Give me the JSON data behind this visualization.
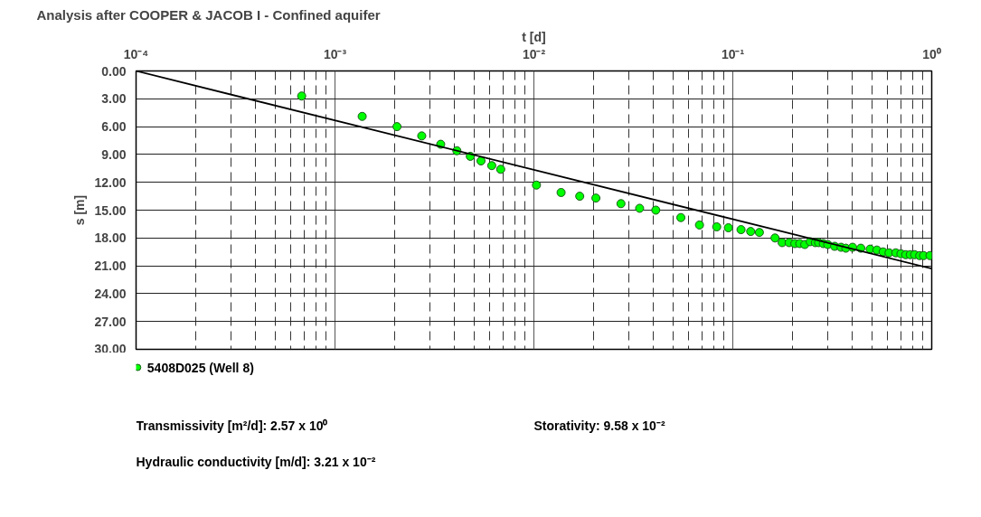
{
  "chart_data": {
    "type": "scatter",
    "title": "Analysis after COOPER & JACOB I - Confined aquifer",
    "xlabel": "t [d]",
    "ylabel": "s [m]",
    "log": "x",
    "grid": true,
    "legend": "bottom left",
    "xlim": [
      0.0001,
      1
    ],
    "xticks": [
      {
        "value": 0.0001,
        "label": "10⁻⁴"
      },
      {
        "value": 0.001,
        "label": "10⁻³"
      },
      {
        "value": 0.01,
        "label": "10⁻²"
      },
      {
        "value": 0.1,
        "label": "10⁻¹"
      },
      {
        "value": 1,
        "label": "10⁰"
      }
    ],
    "ylim": [
      30,
      0
    ],
    "yticks": [
      {
        "value": 0,
        "label": "0.00"
      },
      {
        "value": 3,
        "label": "3.00"
      },
      {
        "value": 6,
        "label": "6.00"
      },
      {
        "value": 9,
        "label": "9.00"
      },
      {
        "value": 12,
        "label": "12.00"
      },
      {
        "value": 15,
        "label": "15.00"
      },
      {
        "value": 18,
        "label": "18.00"
      },
      {
        "value": 21,
        "label": "21.00"
      },
      {
        "value": 24,
        "label": "24.00"
      },
      {
        "value": 27,
        "label": "27.00"
      },
      {
        "value": 30,
        "label": "30.00"
      }
    ],
    "series": [
      {
        "name": "5408D025 (Well 8)",
        "marker": "circle",
        "color": "#00ff00",
        "x": [
          0.00068,
          0.00137,
          0.00205,
          0.00273,
          0.0034,
          0.0041,
          0.00479,
          0.00542,
          0.00614,
          0.00681,
          0.0103,
          0.0137,
          0.017,
          0.0205,
          0.0274,
          0.034,
          0.041,
          0.0548,
          0.068,
          0.083,
          0.095,
          0.11,
          0.123,
          0.136,
          0.163,
          0.177,
          0.192,
          0.205,
          0.217,
          0.23,
          0.245,
          0.26,
          0.27,
          0.285,
          0.3,
          0.325,
          0.35,
          0.37,
          0.4,
          0.44,
          0.49,
          0.53,
          0.57,
          0.61,
          0.66,
          0.7,
          0.74,
          0.78,
          0.82,
          0.87,
          0.91,
          0.98
        ],
        "values": [
          2.7,
          4.9,
          6.0,
          7.0,
          7.9,
          8.6,
          9.2,
          9.7,
          10.2,
          10.6,
          12.3,
          13.1,
          13.5,
          13.7,
          14.3,
          14.8,
          15.0,
          15.8,
          16.6,
          16.8,
          16.9,
          17.1,
          17.3,
          17.4,
          18.0,
          18.5,
          18.5,
          18.6,
          18.6,
          18.7,
          18.4,
          18.5,
          18.5,
          18.6,
          18.7,
          18.9,
          19.0,
          19.1,
          19.0,
          19.1,
          19.2,
          19.3,
          19.5,
          19.6,
          19.6,
          19.7,
          19.8,
          19.8,
          19.8,
          19.9,
          19.9,
          19.9
        ]
      },
      {
        "type": "line",
        "color": "#000000",
        "x": [
          0.0001,
          1
        ],
        "values": [
          0,
          21.3
        ]
      }
    ],
    "annotations": [
      "Transmissivity [m²/d]:  2.57 x 10⁰",
      "Storativity: 9.58 x 10⁻²",
      "Hydraulic conductivity [m/d]:  3.21 x 10⁻²"
    ]
  }
}
